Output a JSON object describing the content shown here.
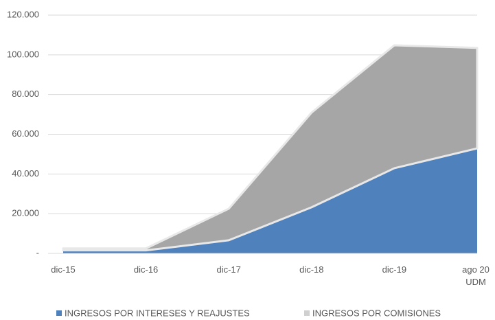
{
  "chart_data": {
    "type": "stacked_area",
    "categories": [
      "dic-15",
      "dic-16",
      "dic-17",
      "dic-18",
      "dic-19",
      "ago 20 UDM"
    ],
    "series": [
      {
        "name": "INGRESOS POR INTERESES Y REAJUSTES",
        "color": "#4f81bd",
        "values": [
          1500,
          1500,
          6600,
          23200,
          42900,
          52900
        ]
      },
      {
        "name": "INGRESOS POR COMISIONES",
        "color": "#a6a6a6",
        "values": [
          1000,
          1000,
          15900,
          47700,
          61900,
          50600
        ]
      }
    ],
    "ylim": [
      0,
      120000
    ],
    "yticks": [
      {
        "value": 0,
        "label": "-"
      },
      {
        "value": 20000,
        "label": "20.000"
      },
      {
        "value": 40000,
        "label": "40.000"
      },
      {
        "value": 60000,
        "label": "60.000"
      },
      {
        "value": 80000,
        "label": "80.000"
      },
      {
        "value": 100000,
        "label": "100.000"
      },
      {
        "value": 120000,
        "label": "120.000"
      }
    ],
    "grid": true,
    "legend": "bottom"
  }
}
